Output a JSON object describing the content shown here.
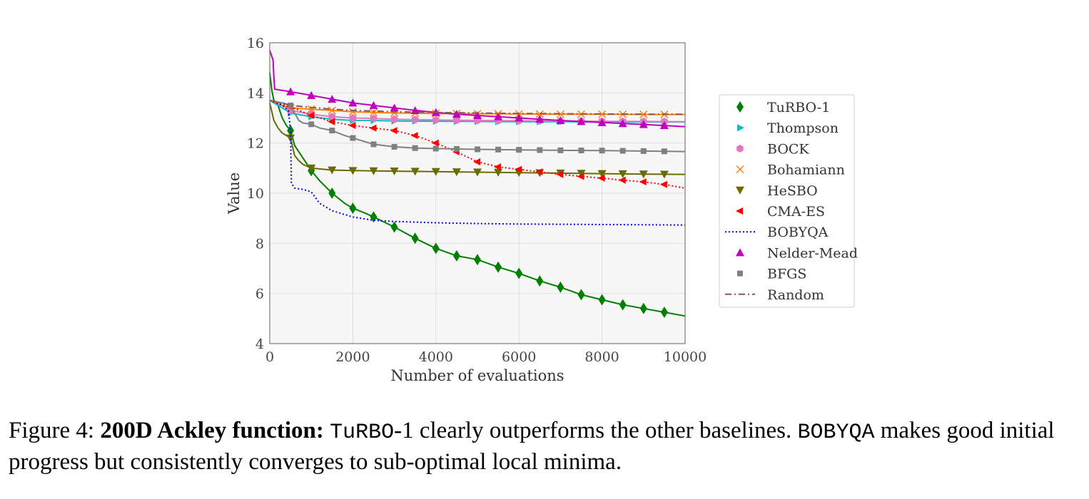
{
  "chart_data": {
    "type": "line",
    "xlabel": "Number of evaluations",
    "ylabel": "Value",
    "xlim": [
      0,
      10000
    ],
    "ylim": [
      4,
      16
    ],
    "xticks": [
      0,
      2000,
      4000,
      6000,
      8000,
      10000
    ],
    "yticks": [
      4,
      6,
      8,
      10,
      12,
      14,
      16
    ],
    "grid": true,
    "legend_position": "right",
    "series": [
      {
        "name": "TuRBO-1",
        "color": "#008000",
        "marker": "diamond",
        "linestyle": "solid",
        "x": [
          0,
          50,
          100,
          200,
          300,
          400,
          500,
          600,
          800,
          1000,
          1200,
          1500,
          1800,
          2000,
          2300,
          2500,
          3000,
          3500,
          4000,
          4500,
          5000,
          5500,
          6000,
          6500,
          7000,
          7500,
          8000,
          8500,
          9000,
          9500,
          10000
        ],
        "y": [
          14.8,
          14.1,
          13.7,
          13.5,
          13.0,
          12.7,
          12.5,
          11.9,
          11.4,
          10.9,
          10.5,
          10.0,
          9.6,
          9.4,
          9.2,
          9.05,
          8.65,
          8.2,
          7.8,
          7.5,
          7.35,
          7.05,
          6.8,
          6.5,
          6.25,
          5.95,
          5.75,
          5.55,
          5.4,
          5.25,
          5.1
        ]
      },
      {
        "name": "Thompson",
        "color": "#00bfbf",
        "marker": "tri-right",
        "linestyle": "solid",
        "x": [
          0,
          300,
          500,
          1000,
          1500,
          2000,
          2500,
          3000,
          4000,
          5000,
          6000,
          7000,
          8000,
          9000,
          10000
        ],
        "y": [
          13.7,
          13.4,
          13.2,
          13.05,
          12.95,
          12.9,
          12.9,
          12.88,
          12.87,
          12.86,
          12.85,
          12.85,
          12.84,
          12.84,
          12.84
        ]
      },
      {
        "name": "BOCK",
        "color": "#e377c2",
        "marker": "hexagon",
        "linestyle": "solid",
        "x": [
          0,
          300,
          500,
          1000,
          1500,
          2000,
          2500,
          3000,
          4000,
          5000,
          6000,
          7000,
          8000,
          9000,
          10000
        ],
        "y": [
          13.7,
          13.5,
          13.3,
          13.15,
          13.05,
          13.0,
          12.98,
          12.95,
          12.92,
          12.9,
          12.89,
          12.88,
          12.87,
          12.86,
          12.85
        ]
      },
      {
        "name": "Bohamiann",
        "color": "#ff7f0e",
        "marker": "x",
        "linestyle": "solid",
        "x": [
          0,
          300,
          500,
          1000,
          1500,
          2000,
          2500,
          3000,
          4000,
          5000,
          6000,
          7000,
          8000,
          9000,
          10000
        ],
        "y": [
          13.7,
          13.5,
          13.4,
          13.35,
          13.3,
          13.25,
          13.22,
          13.2,
          13.18,
          13.17,
          13.16,
          13.15,
          13.15,
          13.14,
          13.14
        ]
      },
      {
        "name": "HeSBO",
        "color": "#6b6b00",
        "marker": "tri-down",
        "linestyle": "solid",
        "x": [
          0,
          100,
          200,
          300,
          400,
          500,
          600,
          700,
          800,
          1000,
          1500,
          2000,
          3000,
          4000,
          5000,
          6000,
          7000,
          8000,
          9000,
          10000
        ],
        "y": [
          13.6,
          12.9,
          12.6,
          12.4,
          12.3,
          12.2,
          11.5,
          11.3,
          11.15,
          11.0,
          10.92,
          10.9,
          10.88,
          10.86,
          10.84,
          10.82,
          10.8,
          10.78,
          10.76,
          10.75
        ]
      },
      {
        "name": "CMA-ES",
        "color": "#ff0000",
        "marker": "tri-left",
        "linestyle": "dotted",
        "x": [
          0,
          500,
          1000,
          1500,
          2000,
          2500,
          3000,
          3500,
          4000,
          4500,
          5000,
          5500,
          6000,
          6500,
          7000,
          7500,
          8000,
          8500,
          9000,
          9500,
          10000
        ],
        "y": [
          13.7,
          13.45,
          13.1,
          12.85,
          12.7,
          12.6,
          12.5,
          12.3,
          12.0,
          11.65,
          11.25,
          11.05,
          10.95,
          10.85,
          10.75,
          10.67,
          10.6,
          10.52,
          10.45,
          10.35,
          10.2
        ]
      },
      {
        "name": "BOBYQA",
        "color": "#0000ff",
        "marker": "none",
        "linestyle": "dotted",
        "x": [
          0,
          300,
          450,
          500,
          520,
          600,
          800,
          1000,
          1200,
          1500,
          2000,
          2500,
          3000,
          4000,
          5000,
          6000,
          7000,
          8000,
          9000,
          10000
        ],
        "y": [
          13.7,
          13.5,
          13.3,
          12.5,
          10.4,
          10.2,
          10.15,
          10.05,
          9.6,
          9.3,
          9.05,
          8.92,
          8.87,
          8.82,
          8.79,
          8.77,
          8.76,
          8.75,
          8.74,
          8.73
        ]
      },
      {
        "name": "Nelder-Mead",
        "color": "#bf00bf",
        "marker": "tri-up",
        "linestyle": "solid",
        "x": [
          0,
          80,
          100,
          120,
          500,
          1000,
          1500,
          2000,
          2500,
          3000,
          3500,
          4000,
          4500,
          5000,
          5500,
          6000,
          6500,
          7000,
          7500,
          8000,
          8500,
          9000,
          9500,
          10000
        ],
        "y": [
          15.7,
          15.3,
          14.6,
          14.15,
          14.05,
          13.9,
          13.75,
          13.6,
          13.5,
          13.4,
          13.3,
          13.22,
          13.15,
          13.1,
          13.05,
          13.0,
          12.95,
          12.9,
          12.86,
          12.82,
          12.78,
          12.74,
          12.7,
          12.65
        ]
      },
      {
        "name": "BFGS",
        "color": "#808080",
        "marker": "square",
        "linestyle": "solid",
        "x": [
          0,
          300,
          500,
          600,
          700,
          800,
          1000,
          1200,
          1500,
          1800,
          2000,
          2500,
          3000,
          3500,
          4000,
          5000,
          6000,
          7000,
          8000,
          9000,
          10000
        ],
        "y": [
          13.7,
          13.6,
          13.5,
          13.2,
          12.9,
          12.8,
          12.75,
          12.6,
          12.5,
          12.3,
          12.2,
          11.95,
          11.85,
          11.8,
          11.78,
          11.75,
          11.73,
          11.71,
          11.7,
          11.68,
          11.66
        ]
      },
      {
        "name": "Random",
        "color": "#8c564b",
        "marker": "none",
        "linestyle": "dashdot",
        "x": [
          0,
          300,
          500,
          1000,
          1500,
          2000,
          2500,
          3000,
          4000,
          5000,
          6000,
          7000,
          8000,
          9000,
          10000
        ],
        "y": [
          13.7,
          13.6,
          13.5,
          13.42,
          13.35,
          13.3,
          13.28,
          13.25,
          13.22,
          13.2,
          13.18,
          13.17,
          13.16,
          13.15,
          13.15
        ]
      }
    ]
  },
  "caption": {
    "fig_num": "Figure 4:",
    "bold_title": "200D Ackley function:",
    "algo1": "TuRBO",
    "part1": "-1 clearly outperforms the other baselines.",
    "algo2": "BOBYQA",
    "part2": "makes good initial progress but consistently converges to sub-optimal local minima."
  }
}
